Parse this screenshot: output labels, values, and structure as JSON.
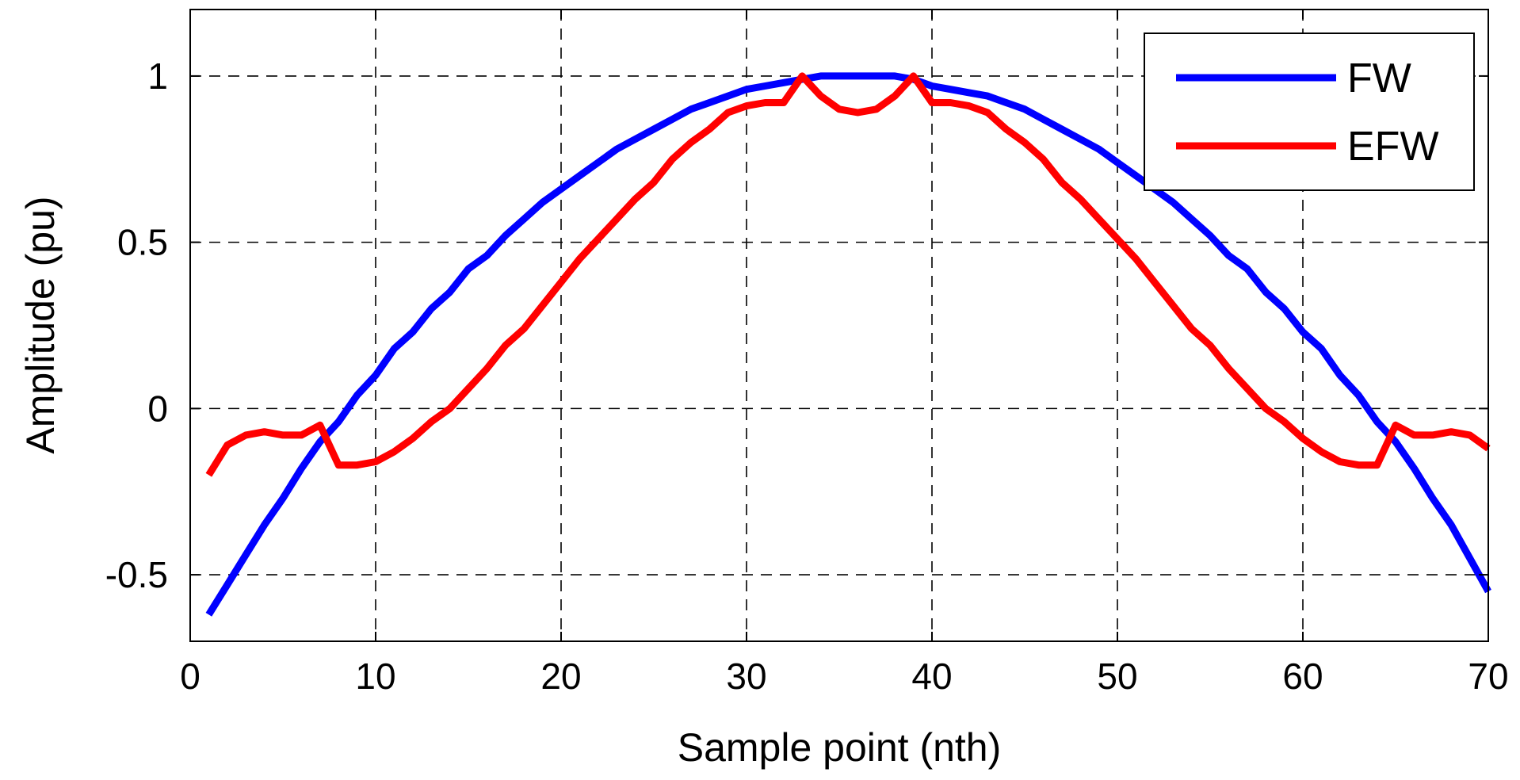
{
  "chart_data": {
    "type": "line",
    "title": "",
    "xlabel": "Sample point (nth)",
    "ylabel": "Amplitude (pu)",
    "xlim": [
      0,
      70
    ],
    "ylim": [
      -0.7,
      1.2
    ],
    "xticks": [
      0,
      10,
      20,
      30,
      40,
      50,
      60,
      70
    ],
    "xtick_labels": [
      "0",
      "10",
      "20",
      "30",
      "40",
      "50",
      "60",
      "70"
    ],
    "yticks": [
      -0.5,
      0,
      0.5,
      1
    ],
    "ytick_labels": [
      "-0.5",
      "0",
      "0.5",
      "1"
    ],
    "grid": true,
    "legend_position": "top-right",
    "x": [
      1,
      2,
      3,
      4,
      5,
      6,
      7,
      8,
      9,
      10,
      11,
      12,
      13,
      14,
      15,
      16,
      17,
      18,
      19,
      20,
      21,
      22,
      23,
      24,
      25,
      26,
      27,
      28,
      29,
      30,
      31,
      32,
      33,
      34,
      35,
      36,
      37,
      38,
      39,
      40,
      41,
      42,
      43,
      44,
      45,
      46,
      47,
      48,
      49,
      50,
      51,
      52,
      53,
      54,
      55,
      56,
      57,
      58,
      59,
      60,
      61,
      62,
      63,
      64,
      65,
      66,
      67,
      68,
      69,
      70
    ],
    "series": [
      {
        "name": "FW",
        "color": "#0000ff",
        "values": [
          -0.62,
          -0.53,
          -0.44,
          -0.35,
          -0.27,
          -0.18,
          -0.1,
          -0.04,
          0.04,
          0.1,
          0.18,
          0.23,
          0.3,
          0.35,
          0.42,
          0.46,
          0.52,
          0.57,
          0.62,
          0.66,
          0.7,
          0.74,
          0.78,
          0.81,
          0.84,
          0.87,
          0.9,
          0.92,
          0.94,
          0.96,
          0.97,
          0.98,
          0.99,
          1.0,
          1.0,
          1.0,
          1.0,
          1.0,
          0.99,
          0.97,
          0.96,
          0.95,
          0.94,
          0.92,
          0.9,
          0.87,
          0.84,
          0.81,
          0.78,
          0.74,
          0.7,
          0.66,
          0.62,
          0.57,
          0.52,
          0.46,
          0.42,
          0.35,
          0.3,
          0.23,
          0.18,
          0.1,
          0.04,
          -0.04,
          -0.1,
          -0.18,
          -0.27,
          -0.35,
          -0.45,
          -0.55
        ]
      },
      {
        "name": "EFW",
        "color": "#ff0000",
        "values": [
          -0.2,
          -0.11,
          -0.08,
          -0.07,
          -0.08,
          -0.08,
          -0.05,
          -0.17,
          -0.17,
          -0.16,
          -0.13,
          -0.09,
          -0.04,
          0.0,
          0.06,
          0.12,
          0.19,
          0.24,
          0.31,
          0.38,
          0.45,
          0.51,
          0.57,
          0.63,
          0.68,
          0.75,
          0.8,
          0.84,
          0.89,
          0.91,
          0.92,
          0.92,
          1.0,
          0.94,
          0.9,
          0.89,
          0.9,
          0.94,
          1.0,
          0.92,
          0.92,
          0.91,
          0.89,
          0.84,
          0.8,
          0.75,
          0.68,
          0.63,
          0.57,
          0.51,
          0.45,
          0.38,
          0.31,
          0.24,
          0.19,
          0.12,
          0.06,
          0.0,
          -0.04,
          -0.09,
          -0.13,
          -0.16,
          -0.17,
          -0.17,
          -0.05,
          -0.08,
          -0.08,
          -0.07,
          -0.08,
          -0.12
        ]
      }
    ]
  }
}
